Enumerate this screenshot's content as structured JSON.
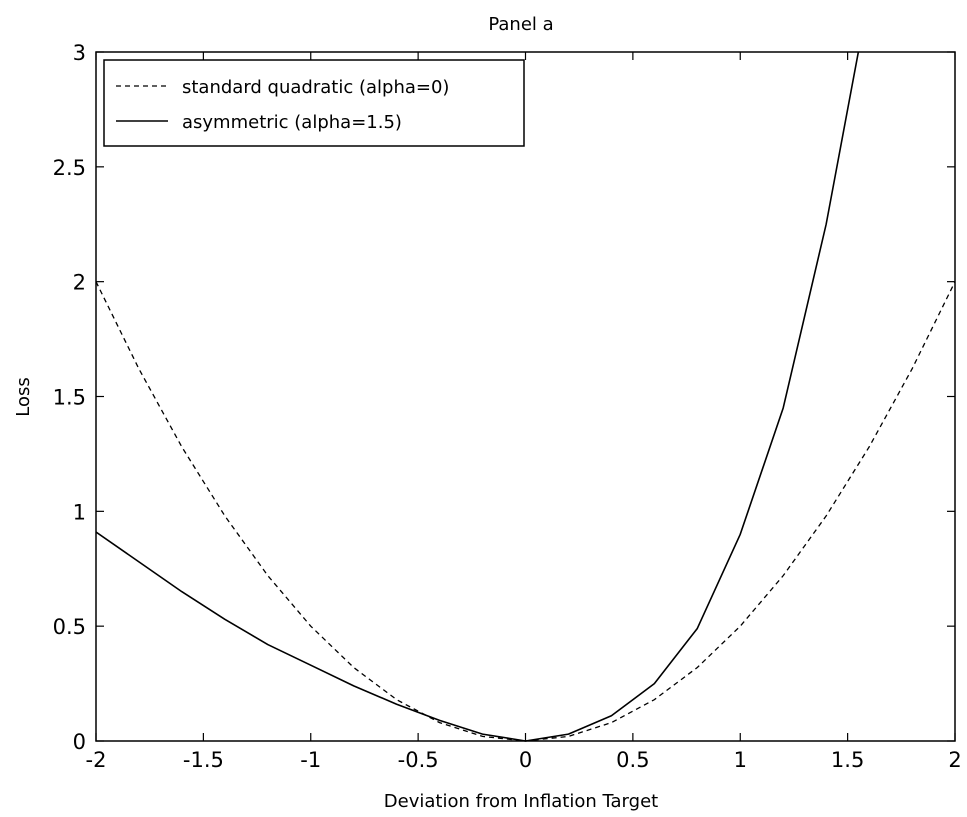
{
  "chart_data": {
    "type": "line",
    "title": "Panel a",
    "xlabel": "Deviation from Inflation Target",
    "ylabel": "Loss",
    "xlim": [
      -2,
      2
    ],
    "ylim": [
      0,
      3
    ],
    "xticks": [
      -2,
      -1.5,
      -1,
      -0.5,
      0,
      0.5,
      1,
      1.5,
      2
    ],
    "xtick_labels": [
      "-2",
      "-1.5",
      "-1",
      "-0.5",
      "0",
      "0.5",
      "1",
      "1.5",
      "2"
    ],
    "yticks": [
      0,
      0.5,
      1,
      1.5,
      2,
      2.5,
      3
    ],
    "ytick_labels": [
      "0",
      "0.5",
      "1",
      "1.5",
      "2",
      "2.5",
      "3"
    ],
    "grid": false,
    "legend_position": "top-left",
    "series": [
      {
        "name": "standard quadratic (alpha=0)",
        "line_style": "dashed",
        "color": "#000000",
        "x": [
          -2,
          -1.8,
          -1.6,
          -1.4,
          -1.2,
          -1,
          -0.8,
          -0.6,
          -0.4,
          -0.2,
          0,
          0.2,
          0.4,
          0.6,
          0.8,
          1,
          1.2,
          1.4,
          1.6,
          1.8,
          2
        ],
        "y": [
          2,
          1.62,
          1.28,
          0.98,
          0.72,
          0.5,
          0.32,
          0.18,
          0.08,
          0.02,
          0,
          0.02,
          0.08,
          0.18,
          0.32,
          0.5,
          0.72,
          0.98,
          1.28,
          1.62,
          2
        ]
      },
      {
        "name": "asymmetric (alpha=1.5)",
        "line_style": "solid",
        "color": "#000000",
        "x": [
          -2,
          -1.8,
          -1.6,
          -1.4,
          -1.2,
          -1,
          -0.8,
          -0.6,
          -0.4,
          -0.2,
          0,
          0.2,
          0.4,
          0.6,
          0.8,
          1,
          1.2,
          1.4,
          1.55
        ],
        "y": [
          0.91,
          0.78,
          0.65,
          0.53,
          0.42,
          0.33,
          0.24,
          0.16,
          0.09,
          0.03,
          0,
          0.03,
          0.11,
          0.25,
          0.49,
          0.9,
          1.45,
          2.25,
          3.0
        ]
      }
    ]
  }
}
